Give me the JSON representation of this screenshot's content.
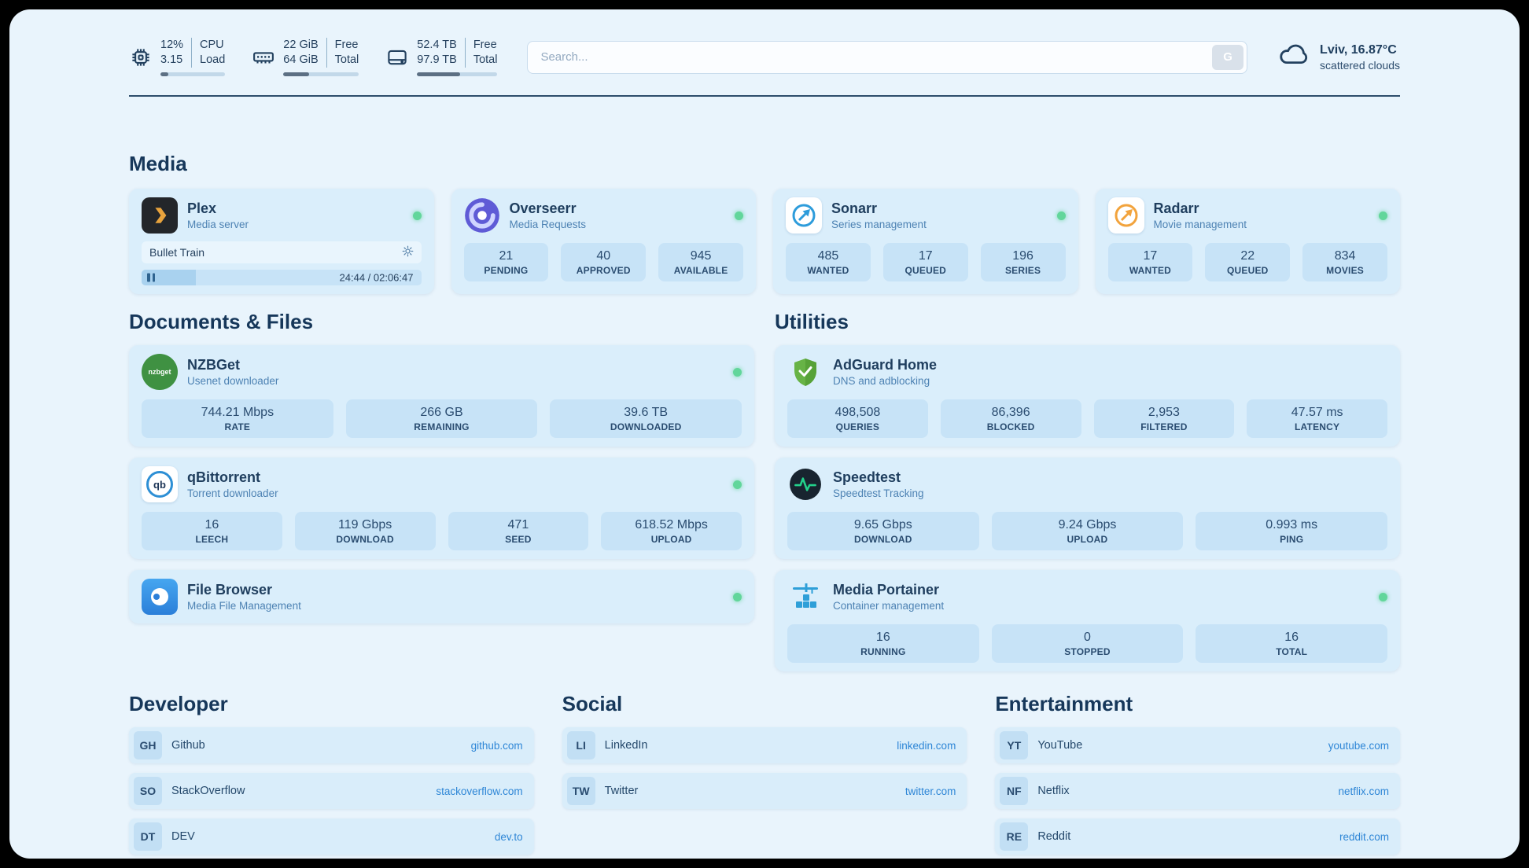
{
  "theme": {
    "background": "#e9f4fc",
    "card": "#daeefb",
    "stat_box": "#c7e3f7",
    "text_primary": "#1f3e5e",
    "text_secondary": "#4d82b3",
    "link": "#2e86d6",
    "status_green": "#62d69b"
  },
  "header": {
    "cpu": {
      "value1": "12%",
      "label1": "CPU",
      "value2": "3.15",
      "label2": "Load",
      "progress": 12
    },
    "ram": {
      "value1": "22 GiB",
      "label1": "Free",
      "value2": "64 GiB",
      "label2": "Total",
      "progress": 34
    },
    "disk": {
      "value1": "52.4 TB",
      "label1": "Free",
      "value2": "97.9 TB",
      "label2": "Total",
      "progress": 54
    },
    "search": {
      "placeholder": "Search...",
      "button_label": "G"
    },
    "weather": {
      "location": "Lviv, 16.87°C",
      "condition": "scattered clouds"
    }
  },
  "media": {
    "title": "Media",
    "plex": {
      "name": "Plex",
      "subtitle": "Media server",
      "now_playing": "Bullet Train",
      "time": "24:44 / 02:06:47",
      "progress": 19.5
    },
    "overseerr": {
      "name": "Overseerr",
      "subtitle": "Media Requests",
      "stats": [
        {
          "value": "21",
          "label": "PENDING"
        },
        {
          "value": "40",
          "label": "APPROVED"
        },
        {
          "value": "945",
          "label": "AVAILABLE"
        }
      ]
    },
    "sonarr": {
      "name": "Sonarr",
      "subtitle": "Series management",
      "stats": [
        {
          "value": "485",
          "label": "WANTED"
        },
        {
          "value": "17",
          "label": "QUEUED"
        },
        {
          "value": "196",
          "label": "SERIES"
        }
      ]
    },
    "radarr": {
      "name": "Radarr",
      "subtitle": "Movie management",
      "stats": [
        {
          "value": "17",
          "label": "WANTED"
        },
        {
          "value": "22",
          "label": "QUEUED"
        },
        {
          "value": "834",
          "label": "MOVIES"
        }
      ]
    }
  },
  "documents": {
    "title": "Documents & Files",
    "nzbget": {
      "name": "NZBGet",
      "subtitle": "Usenet downloader",
      "icon_text": "nzbget",
      "stats": [
        {
          "value": "744.21 Mbps",
          "label": "RATE"
        },
        {
          "value": "266 GB",
          "label": "REMAINING"
        },
        {
          "value": "39.6 TB",
          "label": "DOWNLOADED"
        }
      ]
    },
    "qbittorrent": {
      "name": "qBittorrent",
      "subtitle": "Torrent downloader",
      "icon_text": "qb",
      "stats": [
        {
          "value": "16",
          "label": "LEECH"
        },
        {
          "value": "119 Gbps",
          "label": "DOWNLOAD"
        },
        {
          "value": "471",
          "label": "SEED"
        },
        {
          "value": "618.52 Mbps",
          "label": "UPLOAD"
        }
      ]
    },
    "filebrowser": {
      "name": "File Browser",
      "subtitle": "Media File Management"
    }
  },
  "utilities": {
    "title": "Utilities",
    "adguard": {
      "name": "AdGuard Home",
      "subtitle": "DNS and adblocking",
      "stats": [
        {
          "value": "498,508",
          "label": "QUERIES"
        },
        {
          "value": "86,396",
          "label": "BLOCKED"
        },
        {
          "value": "2,953",
          "label": "FILTERED"
        },
        {
          "value": "47.57 ms",
          "label": "LATENCY"
        }
      ]
    },
    "speedtest": {
      "name": "Speedtest",
      "subtitle": "Speedtest Tracking",
      "stats": [
        {
          "value": "9.65 Gbps",
          "label": "DOWNLOAD"
        },
        {
          "value": "9.24 Gbps",
          "label": "UPLOAD"
        },
        {
          "value": "0.993 ms",
          "label": "PING"
        }
      ]
    },
    "portainer": {
      "name": "Media Portainer",
      "subtitle": "Container management",
      "stats": [
        {
          "value": "16",
          "label": "RUNNING"
        },
        {
          "value": "0",
          "label": "STOPPED"
        },
        {
          "value": "16",
          "label": "TOTAL"
        }
      ]
    }
  },
  "links": {
    "developer": {
      "title": "Developer",
      "items": [
        {
          "abbr": "GH",
          "name": "Github",
          "url": "github.com"
        },
        {
          "abbr": "SO",
          "name": "StackOverflow",
          "url": "stackoverflow.com"
        },
        {
          "abbr": "DT",
          "name": "DEV",
          "url": "dev.to"
        }
      ]
    },
    "social": {
      "title": "Social",
      "items": [
        {
          "abbr": "LI",
          "name": "LinkedIn",
          "url": "linkedin.com"
        },
        {
          "abbr": "TW",
          "name": "Twitter",
          "url": "twitter.com"
        }
      ]
    },
    "entertainment": {
      "title": "Entertainment",
      "items": [
        {
          "abbr": "YT",
          "name": "YouTube",
          "url": "youtube.com"
        },
        {
          "abbr": "NF",
          "name": "Netflix",
          "url": "netflix.com"
        },
        {
          "abbr": "RE",
          "name": "Reddit",
          "url": "reddit.com"
        }
      ]
    }
  }
}
